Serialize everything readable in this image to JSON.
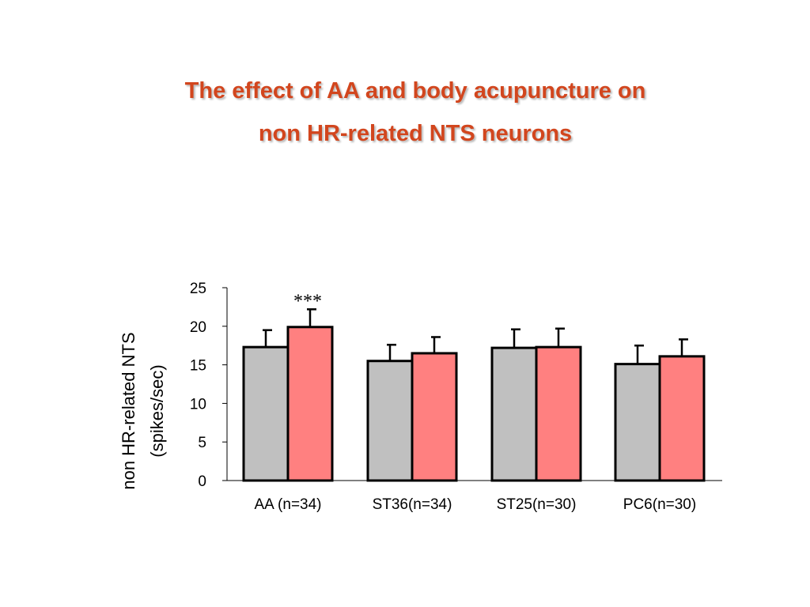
{
  "title": {
    "line1": "The effect of AA and body acupuncture on",
    "line2": "non HR-related NTS neurons"
  },
  "chart_data": {
    "type": "bar",
    "title": "The effect of AA and body acupuncture on non HR-related NTS neurons",
    "ylabel": [
      "non HR-related NTS",
      "(spikes/sec)"
    ],
    "xlabel": "",
    "ylim": [
      0,
      25
    ],
    "yticks": [
      0,
      5,
      10,
      15,
      20,
      25
    ],
    "categories": [
      "AA (n=34)",
      "ST36(n=34)",
      "ST25(n=30)",
      "PC6(n=30)"
    ],
    "series": [
      {
        "color": "#c0c0c0",
        "values": [
          17.3,
          15.5,
          17.2,
          15.1
        ],
        "errors": [
          2.2,
          2.1,
          2.4,
          2.4
        ]
      },
      {
        "color": "#ff8080",
        "values": [
          19.9,
          16.5,
          17.3,
          16.1
        ],
        "errors": [
          2.3,
          2.1,
          2.4,
          2.2
        ]
      }
    ],
    "annotations": [
      {
        "category": 0,
        "series": 1,
        "text": "***"
      }
    ],
    "grid": false,
    "legend": "none"
  }
}
